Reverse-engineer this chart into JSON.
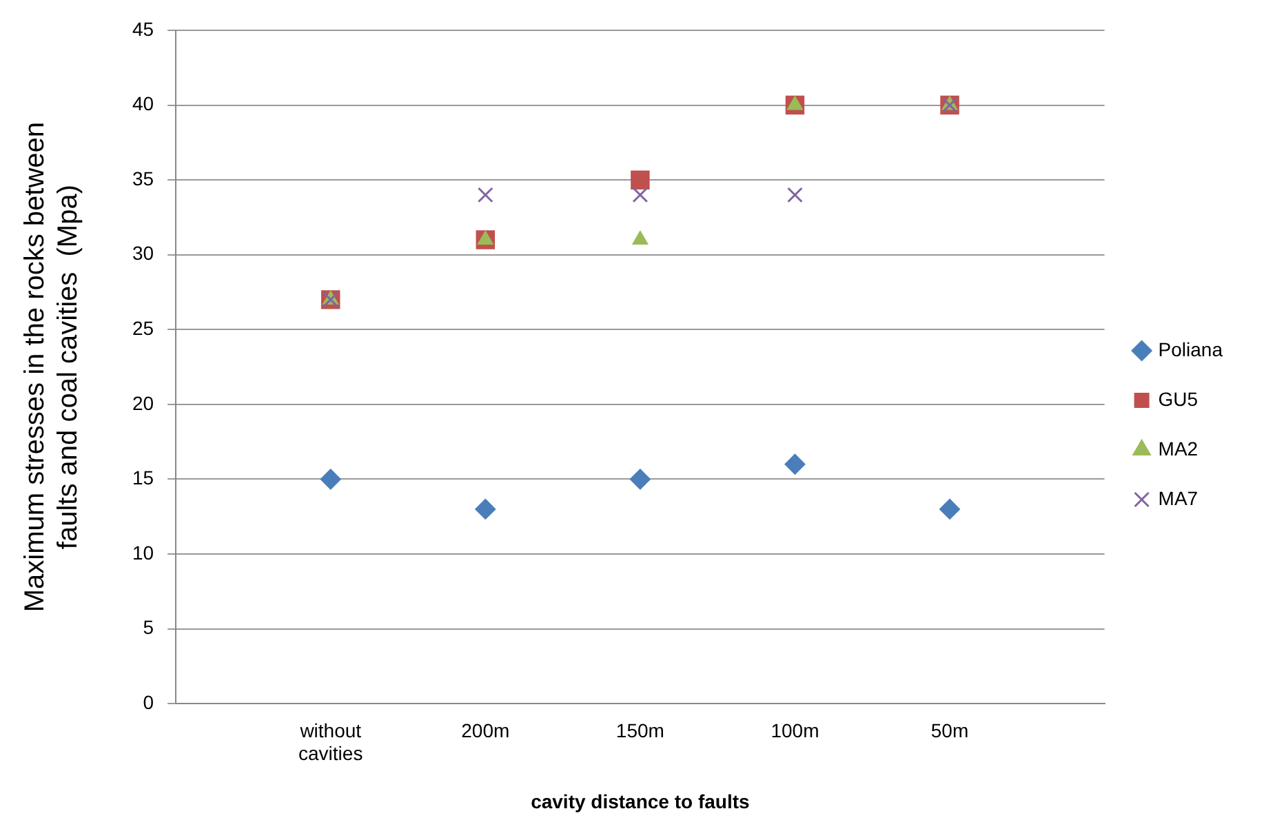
{
  "chart_data": {
    "type": "scatter",
    "xlabel": "cavity distance to faults",
    "ylabel": "Maximum stresses in the rocks between faults and coal cavities  (Mpa)",
    "categories": [
      null,
      "without cavities",
      "200m",
      "150m",
      "100m",
      "50m",
      null
    ],
    "ylim": [
      0,
      45
    ],
    "yticks": [
      0,
      5,
      10,
      15,
      20,
      25,
      30,
      35,
      40,
      45
    ],
    "grid": "y",
    "legend": "right",
    "series": [
      {
        "name": "Poliana",
        "color": "#4a7ebb",
        "marker": "diamond",
        "values": [
          null,
          15,
          13,
          15,
          16,
          13,
          null
        ]
      },
      {
        "name": "GU5",
        "color": "#c0504d",
        "marker": "square",
        "values": [
          null,
          27,
          31,
          35,
          40,
          40,
          null
        ]
      },
      {
        "name": "MA2",
        "color": "#9bbb59",
        "marker": "triangle",
        "values": [
          null,
          27,
          31,
          31,
          40,
          40,
          null
        ]
      },
      {
        "name": "MA7",
        "color": "#8064a2",
        "marker": "cross",
        "values": [
          null,
          27,
          34,
          34,
          34,
          40,
          null
        ]
      }
    ]
  }
}
